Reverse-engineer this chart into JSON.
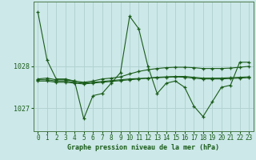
{
  "title": "Graphe pression niveau de la mer (hPa)",
  "bg_color": "#cce8e8",
  "grid_color_major": "#b0d0d0",
  "grid_color_minor": "#c0dede",
  "line_color": "#1a5c1a",
  "marker_color": "#1a5c1a",
  "tick_color": "#1a5c1a",
  "spine_color": "#4a7a4a",
  "xlim": [
    -0.5,
    23.5
  ],
  "ylim": [
    1026.45,
    1029.55
  ],
  "yticks": [
    1027,
    1028
  ],
  "xticks": [
    0,
    1,
    2,
    3,
    4,
    5,
    6,
    7,
    8,
    9,
    10,
    11,
    12,
    13,
    14,
    15,
    16,
    17,
    18,
    19,
    20,
    21,
    22,
    23
  ],
  "series": [
    [
      1029.3,
      1028.15,
      1027.7,
      1027.7,
      1027.65,
      1026.75,
      1027.3,
      1027.35,
      1027.6,
      1027.85,
      1029.2,
      1028.9,
      1028.0,
      1027.35,
      1027.6,
      1027.65,
      1027.5,
      1027.05,
      1026.8,
      1027.15,
      1027.5,
      1027.55,
      1028.1,
      1028.1
    ],
    [
      1027.7,
      1027.72,
      1027.68,
      1027.68,
      1027.65,
      1027.62,
      1027.65,
      1027.7,
      1027.72,
      1027.75,
      1027.82,
      1027.88,
      1027.92,
      1027.95,
      1027.97,
      1027.98,
      1027.98,
      1027.97,
      1027.95,
      1027.95,
      1027.95,
      1027.96,
      1027.98,
      1028.0
    ],
    [
      1027.65,
      1027.65,
      1027.62,
      1027.62,
      1027.6,
      1027.58,
      1027.6,
      1027.62,
      1027.64,
      1027.66,
      1027.68,
      1027.7,
      1027.72,
      1027.74,
      1027.75,
      1027.76,
      1027.76,
      1027.74,
      1027.72,
      1027.72,
      1027.72,
      1027.73,
      1027.74,
      1027.75
    ],
    [
      1027.68,
      1027.68,
      1027.65,
      1027.65,
      1027.62,
      1027.6,
      1027.62,
      1027.64,
      1027.66,
      1027.68,
      1027.7,
      1027.71,
      1027.72,
      1027.73,
      1027.74,
      1027.75,
      1027.74,
      1027.72,
      1027.7,
      1027.7,
      1027.7,
      1027.71,
      1027.72,
      1027.73
    ]
  ],
  "title_fontsize": 6.0,
  "tick_fontsize": 5.5
}
